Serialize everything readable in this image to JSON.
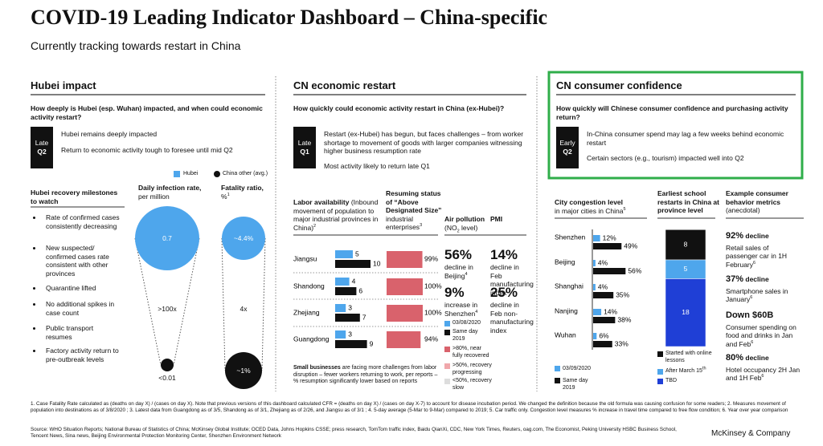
{
  "header": {
    "title": "COVID-19 Leading Indicator Dashboard – China-specific",
    "subtitle": "Currently tracking towards restart in China"
  },
  "hubei": {
    "heading": "Hubei impact",
    "question": "How deeply is Hubei (esp. Wuhan) impacted, and when could economic activity restart?",
    "status": {
      "line1": "Late",
      "line2": "Q2"
    },
    "points": [
      "Hubei remains deeply impacted",
      "Return to economic activity tough to foresee until mid Q2"
    ],
    "legend": {
      "hubei": "Hubei",
      "other": "China other (avg.)"
    },
    "milestones_title": "Hubei recovery milestones to watch",
    "milestones": [
      "Rate of confirmed cases consistently decreasing",
      "New suspected/ confirmed cases rate consistent with other provinces",
      "Quarantine lifted",
      "No additional spikes in case count",
      "Public transport resumes",
      "Factory activity return to pre-outbreak levels"
    ],
    "infection": {
      "label": "Daily infection rate,",
      "sub": "per million",
      "hubei": "0.7",
      "other": "<0.01",
      "ratio": ">100x"
    },
    "fatality": {
      "label": "Fatality ratio,",
      "sub": "%",
      "fn": "1",
      "hubei": "~4.4%",
      "other": "~1%",
      "ratio": "4x"
    }
  },
  "economic": {
    "heading": "CN economic restart",
    "question": "How quickly could economic activity restart in China (ex-Hubei)?",
    "status": {
      "line1": "Late",
      "line2": "Q1"
    },
    "points": [
      "Restart (ex-Hubei) has begun, but faces challenges – from worker shortage to movement of goods with larger companies witnessing higher business resumption rate",
      "Most activity likely to return late Q1"
    ],
    "labor_header": {
      "title": "Labor availability",
      "desc": "(Inbound movement of population to major industrial provinces in China)",
      "fn": "2"
    },
    "resuming_header": {
      "title": "Resuming status of “Above Designated Size”",
      "desc": "industrial enterprises",
      "fn": "3"
    },
    "air_header": {
      "title": "Air pollution",
      "desc": "(NO",
      "sub": "2",
      "tail": " level)"
    },
    "pmi_header": "PMI",
    "provinces": [
      "Jiangsu",
      "Shandong",
      "Zhejiang",
      "Guangdong"
    ],
    "labor_2020": [
      5,
      4,
      3,
      3
    ],
    "labor_2019": [
      10,
      6,
      7,
      9
    ],
    "resumption": [
      99,
      100,
      100,
      94
    ],
    "resumption_labels": [
      "99%",
      "100%",
      "100%",
      "94%"
    ],
    "air": [
      {
        "big": "56%",
        "text": "decline in Beijing",
        "fn": "4"
      },
      {
        "big": "9%",
        "text": "increase in Shenzhen",
        "fn": "4"
      }
    ],
    "pmi": [
      {
        "big": "14%",
        "text": "decline in Feb manufacturing index"
      },
      {
        "big": "25%",
        "text": "decline in Feb non-manufacturing index"
      }
    ],
    "legend": [
      "03/08/2020",
      "Same day 2019",
      ">80%, near fully recovered",
      ">50%, recovery progressing",
      "<50%, recovery slow"
    ],
    "note": {
      "lead": "Small businesses",
      "text": " are facing more challenges from labor disruption – fewer workers returning to work, per reports – % resumption significantly lower based on reports"
    }
  },
  "consumer": {
    "heading": "CN consumer confidence",
    "question": "How quickly will Chinese consumer confidence and purchasing activity return?",
    "status": {
      "line1": "Early",
      "line2": "Q2"
    },
    "points": [
      "In-China consumer spend may lag a few weeks behind economic restart",
      "Certain sectors (e.g., tourism) impacted well into Q2"
    ],
    "congestion_header": {
      "title": "City congestion level",
      "desc": "in major cities in China",
      "fn": "5"
    },
    "school_header": "Earliest school restarts in China at province level",
    "metrics_header": {
      "title": "Example consumer behavior metrics",
      "desc": "(anecdotal)"
    },
    "cities": [
      "Shenzhen",
      "Beijing",
      "Shanghai",
      "Nanjing",
      "Wuhan"
    ],
    "congestion_2020": [
      12,
      4,
      4,
      14,
      6
    ],
    "congestion_2020_labels": [
      "12%",
      "4%",
      "4%",
      "14%",
      "6%"
    ],
    "congestion_2019": [
      49,
      56,
      35,
      38,
      33
    ],
    "congestion_2019_labels": [
      "49%",
      "56%",
      "35%",
      "38%",
      "33%"
    ],
    "congestion_legend": [
      "03/09/2020",
      "Same day 2019"
    ],
    "school": [
      {
        "name": "Started with online lessons",
        "value": 8
      },
      {
        "name": "After March 15",
        "sup": "th",
        "value": 5
      },
      {
        "name": "TBD",
        "value": 18
      }
    ],
    "metrics": [
      {
        "big": "92%",
        "unit": " decline",
        "text": "Retail sales of passenger car in 1H February",
        "fn": "6"
      },
      {
        "big": "37%",
        "unit": " decline",
        "text": "Smartphone sales in January",
        "fn": "6"
      },
      {
        "big": "Down $60B",
        "unit": "",
        "text": "Consumer spending on food and drinks in Jan and Feb",
        "fn": "6"
      },
      {
        "big": "80%",
        "unit": " decline",
        "text": "Hotel occupancy 2H Jan and 1H Feb",
        "fn": "6"
      }
    ]
  },
  "footer": {
    "notes": "1. Case Fatality Rate calculated as (deaths on day X) / (cases on day X).  Note that previous versions of this dashboard calculated CFR = (deaths on day X) / (cases on day X-7) to account for disease incubation period. We changed the definition because the old formula was causing confusion for some readers; 2. Measures movement of population into destinations as of 3/8/2020 ; 3. Latest data from Guangdong as of 3/5, Shandong as of 3/1, Zhejiang as of 2/26, and Jiangsu as of 3/1 ; 4. 5-day average (5-Mar to 9-Mar) compared to 2019; 5. Car traffic only. Congestion level measures % increase in travel time compared to free flow condition; 6. Year over year comparison",
    "source": "Source: WHO Situation Reports; National Bureau of Statistics of China; McKinsey Global Institute; OCED Data, Johns Hopkins CSSE; press research, TomTom traffic index, Baidu QianXi, CDC, New York Times, Reuters, oag.com, The Economist, Peking University HSBC Business School, Tencent News, Sina news, Beijing Environmental Protection Monitoring Center, Shenzhen Environment Network",
    "brand": "McKinsey & Company"
  }
}
